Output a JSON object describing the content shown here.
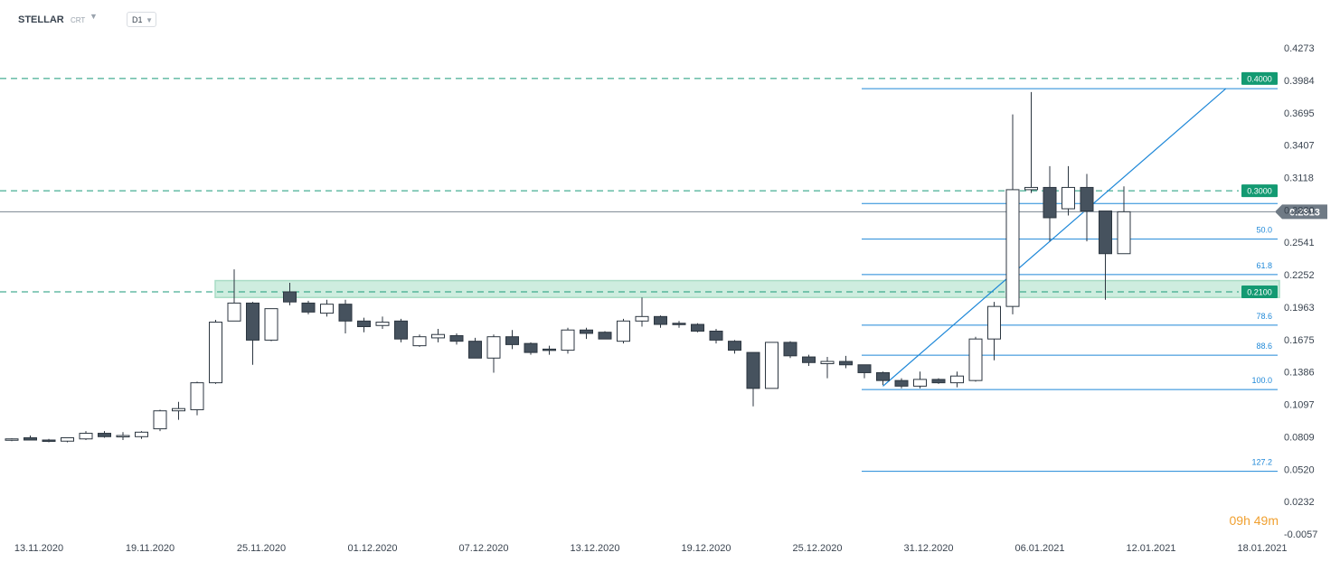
{
  "toolbar": {
    "symbol": "STELLAR",
    "sub": "CRT",
    "timeframe": "D1"
  },
  "countdown": {
    "hours": "09",
    "hours_unit": "h",
    "minutes": "49",
    "minutes_unit": "m"
  },
  "colors": {
    "bear": "#46525e",
    "bull": "#ffffff",
    "outline": "#2c3640",
    "fib": "#1f88d8",
    "level": "#1a9a7a",
    "zone": "#c9ecdc",
    "price_line": "#7a8590",
    "axis_text": "#3a4450"
  },
  "chart_data": {
    "type": "candlestick",
    "y_ticks": [
      "0.4273",
      "0.3984",
      "0.3695",
      "0.3407",
      "0.3118",
      "0.2830",
      "0.2541",
      "0.2252",
      "0.1963",
      "0.1675",
      "0.1386",
      "0.1097",
      "0.0809",
      "0.0520",
      "0.0232",
      "-0.0057"
    ],
    "x_ticks": [
      {
        "label": "13.11.2020",
        "index": 0
      },
      {
        "label": "19.11.2020",
        "index": 6
      },
      {
        "label": "25.11.2020",
        "index": 12
      },
      {
        "label": "01.12.2020",
        "index": 18
      },
      {
        "label": "07.12.2020",
        "index": 24
      },
      {
        "label": "13.12.2020",
        "index": 30
      },
      {
        "label": "19.12.2020",
        "index": 36
      },
      {
        "label": "25.12.2020",
        "index": 42
      },
      {
        "label": "31.12.2020",
        "index": 48
      },
      {
        "label": "06.01.2021",
        "index": 54
      },
      {
        "label": "12.01.2021",
        "index": 60
      },
      {
        "label": "18.01.2021",
        "index": 66
      }
    ],
    "ylim": [
      -0.0057,
      0.4273
    ],
    "candles": [
      {
        "o": 0.078,
        "h": 0.0795,
        "l": 0.077,
        "c": 0.079
      },
      {
        "o": 0.08,
        "h": 0.082,
        "l": 0.078,
        "c": 0.078
      },
      {
        "o": 0.078,
        "h": 0.079,
        "l": 0.076,
        "c": 0.077
      },
      {
        "o": 0.077,
        "h": 0.08,
        "l": 0.076,
        "c": 0.08
      },
      {
        "o": 0.079,
        "h": 0.086,
        "l": 0.078,
        "c": 0.084
      },
      {
        "o": 0.084,
        "h": 0.086,
        "l": 0.08,
        "c": 0.081
      },
      {
        "o": 0.081,
        "h": 0.085,
        "l": 0.078,
        "c": 0.082
      },
      {
        "o": 0.081,
        "h": 0.086,
        "l": 0.079,
        "c": 0.085
      },
      {
        "o": 0.088,
        "h": 0.105,
        "l": 0.086,
        "c": 0.104
      },
      {
        "o": 0.104,
        "h": 0.112,
        "l": 0.096,
        "c": 0.106
      },
      {
        "o": 0.105,
        "h": 0.13,
        "l": 0.1,
        "c": 0.129
      },
      {
        "o": 0.129,
        "h": 0.185,
        "l": 0.128,
        "c": 0.183
      },
      {
        "o": 0.184,
        "h": 0.23,
        "l": 0.184,
        "c": 0.2
      },
      {
        "o": 0.2,
        "h": 0.201,
        "l": 0.145,
        "c": 0.167
      },
      {
        "o": 0.167,
        "h": 0.195,
        "l": 0.166,
        "c": 0.195
      },
      {
        "o": 0.21,
        "h": 0.218,
        "l": 0.198,
        "c": 0.201
      },
      {
        "o": 0.2,
        "h": 0.202,
        "l": 0.19,
        "c": 0.192
      },
      {
        "o": 0.191,
        "h": 0.203,
        "l": 0.188,
        "c": 0.199
      },
      {
        "o": 0.199,
        "h": 0.203,
        "l": 0.173,
        "c": 0.184
      },
      {
        "o": 0.184,
        "h": 0.187,
        "l": 0.174,
        "c": 0.179
      },
      {
        "o": 0.18,
        "h": 0.188,
        "l": 0.177,
        "c": 0.183
      },
      {
        "o": 0.184,
        "h": 0.186,
        "l": 0.165,
        "c": 0.168
      },
      {
        "o": 0.162,
        "h": 0.172,
        "l": 0.161,
        "c": 0.17
      },
      {
        "o": 0.169,
        "h": 0.177,
        "l": 0.165,
        "c": 0.172
      },
      {
        "o": 0.171,
        "h": 0.173,
        "l": 0.163,
        "c": 0.166
      },
      {
        "o": 0.166,
        "h": 0.169,
        "l": 0.151,
        "c": 0.151
      },
      {
        "o": 0.151,
        "h": 0.172,
        "l": 0.138,
        "c": 0.17
      },
      {
        "o": 0.17,
        "h": 0.176,
        "l": 0.159,
        "c": 0.163
      },
      {
        "o": 0.164,
        "h": 0.165,
        "l": 0.154,
        "c": 0.156
      },
      {
        "o": 0.159,
        "h": 0.162,
        "l": 0.154,
        "c": 0.158
      },
      {
        "o": 0.158,
        "h": 0.178,
        "l": 0.155,
        "c": 0.176
      },
      {
        "o": 0.176,
        "h": 0.178,
        "l": 0.168,
        "c": 0.173
      },
      {
        "o": 0.174,
        "h": 0.175,
        "l": 0.168,
        "c": 0.168
      },
      {
        "o": 0.166,
        "h": 0.186,
        "l": 0.164,
        "c": 0.184
      },
      {
        "o": 0.184,
        "h": 0.205,
        "l": 0.179,
        "c": 0.188
      },
      {
        "o": 0.188,
        "h": 0.189,
        "l": 0.178,
        "c": 0.181
      },
      {
        "o": 0.182,
        "h": 0.184,
        "l": 0.178,
        "c": 0.181
      },
      {
        "o": 0.181,
        "h": 0.182,
        "l": 0.174,
        "c": 0.175
      },
      {
        "o": 0.175,
        "h": 0.177,
        "l": 0.164,
        "c": 0.167
      },
      {
        "o": 0.166,
        "h": 0.167,
        "l": 0.155,
        "c": 0.158
      },
      {
        "o": 0.156,
        "h": 0.156,
        "l": 0.108,
        "c": 0.124
      },
      {
        "o": 0.124,
        "h": 0.165,
        "l": 0.124,
        "c": 0.165
      },
      {
        "o": 0.165,
        "h": 0.166,
        "l": 0.151,
        "c": 0.153
      },
      {
        "o": 0.152,
        "h": 0.154,
        "l": 0.144,
        "c": 0.147
      },
      {
        "o": 0.146,
        "h": 0.152,
        "l": 0.133,
        "c": 0.148
      },
      {
        "o": 0.148,
        "h": 0.153,
        "l": 0.142,
        "c": 0.145
      },
      {
        "o": 0.145,
        "h": 0.145,
        "l": 0.133,
        "c": 0.138
      },
      {
        "o": 0.138,
        "h": 0.139,
        "l": 0.127,
        "c": 0.131
      },
      {
        "o": 0.131,
        "h": 0.133,
        "l": 0.124,
        "c": 0.126
      },
      {
        "o": 0.126,
        "h": 0.139,
        "l": 0.124,
        "c": 0.132
      },
      {
        "o": 0.132,
        "h": 0.133,
        "l": 0.128,
        "c": 0.129
      },
      {
        "o": 0.129,
        "h": 0.139,
        "l": 0.125,
        "c": 0.135
      },
      {
        "o": 0.131,
        "h": 0.17,
        "l": 0.13,
        "c": 0.168
      },
      {
        "o": 0.168,
        "h": 0.201,
        "l": 0.149,
        "c": 0.197
      },
      {
        "o": 0.197,
        "h": 0.368,
        "l": 0.19,
        "c": 0.301
      },
      {
        "o": 0.301,
        "h": 0.388,
        "l": 0.298,
        "c": 0.303
      },
      {
        "o": 0.303,
        "h": 0.322,
        "l": 0.255,
        "c": 0.276
      },
      {
        "o": 0.284,
        "h": 0.322,
        "l": 0.278,
        "c": 0.303
      },
      {
        "o": 0.303,
        "h": 0.315,
        "l": 0.255,
        "c": 0.282
      },
      {
        "o": 0.282,
        "h": 0.282,
        "l": 0.203,
        "c": 0.244
      },
      {
        "o": 0.244,
        "h": 0.304,
        "l": 0.244,
        "c": 0.2813
      }
    ],
    "horizontal_levels": [
      {
        "value": 0.4,
        "label": "0.4000"
      },
      {
        "value": 0.3,
        "label": "0.3000"
      },
      {
        "value": 0.21,
        "label": "0.2100"
      }
    ],
    "zone": {
      "from": 0.205,
      "to": 0.22
    },
    "current_price": {
      "value": 0.2813,
      "label": "0.2813"
    },
    "fibonacci": {
      "high": 0.391,
      "low": 0.123,
      "start_index": 47,
      "levels": [
        {
          "ratio": 0.382,
          "label": ""
        },
        {
          "ratio": 0.5,
          "label": "50.0"
        },
        {
          "ratio": 0.618,
          "label": "61.8"
        },
        {
          "ratio": 0.786,
          "label": "78.6"
        },
        {
          "ratio": 0.886,
          "label": "88.6"
        },
        {
          "ratio": 1.0,
          "label": "100.0"
        },
        {
          "ratio": 1.272,
          "label": "127.2"
        }
      ]
    },
    "trendline": {
      "from_index": 47,
      "from_value": 0.126,
      "to_index": 65.5,
      "to_value": 0.391
    }
  }
}
